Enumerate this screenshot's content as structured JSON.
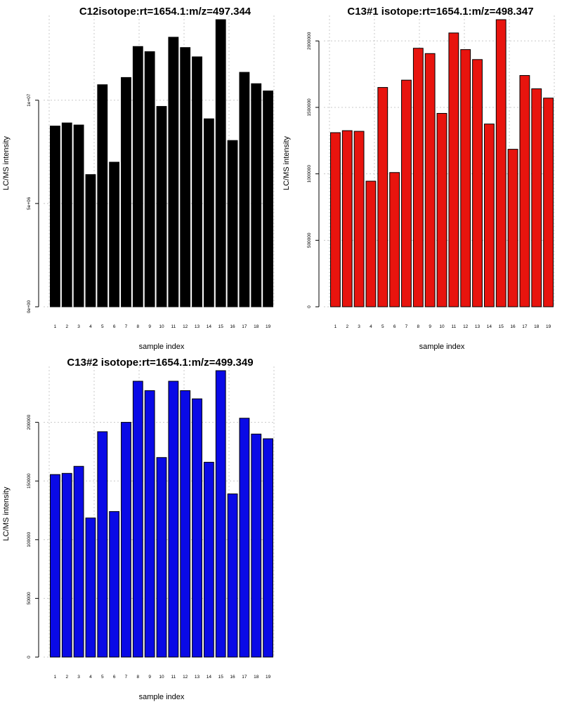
{
  "chart_data": [
    {
      "type": "bar",
      "title": "C12isotope:rt=1654.1:m/z=497.344",
      "xlabel": "sample index",
      "ylabel": "LC/MS intensity",
      "categories": [
        "1",
        "2",
        "3",
        "4",
        "5",
        "6",
        "7",
        "8",
        "9",
        "10",
        "11",
        "12",
        "13",
        "14",
        "15",
        "16",
        "17",
        "18",
        "19"
      ],
      "values": [
        8750000,
        8900000,
        8800000,
        6400000,
        10750000,
        7000000,
        11100000,
        12600000,
        12350000,
        9700000,
        13050000,
        12550000,
        12100000,
        9100000,
        13900000,
        8050000,
        11350000,
        10800000,
        10450000
      ],
      "ylim": [
        0,
        13900000
      ],
      "yticks": [
        0,
        5000000,
        10000000
      ],
      "ytick_labels": [
        "0e+00",
        "5e+06",
        "1e+07"
      ],
      "bar_color": "#000000",
      "grid": true
    },
    {
      "type": "bar",
      "title": "C13#1 isotope:rt=1654.1:m/z=498.347",
      "xlabel": "sample index",
      "ylabel": "LC/MS intensity",
      "categories": [
        "1",
        "2",
        "3",
        "4",
        "5",
        "6",
        "7",
        "8",
        "9",
        "10",
        "11",
        "12",
        "13",
        "14",
        "15",
        "16",
        "17",
        "18",
        "19"
      ],
      "values": [
        1310000,
        1325000,
        1320000,
        945000,
        1650000,
        1010000,
        1705000,
        1945000,
        1905000,
        1455000,
        2060000,
        1935000,
        1860000,
        1375000,
        2160000,
        1185000,
        1740000,
        1640000,
        1570000
      ],
      "ylim": [
        0,
        2160000
      ],
      "yticks": [
        0,
        500000,
        1000000,
        1500000,
        2000000
      ],
      "ytick_labels": [
        "0",
        "500000",
        "1000000",
        "1500000",
        "2000000"
      ],
      "bar_color": "#e8140e",
      "grid": true
    },
    {
      "type": "bar",
      "title": "C13#2 isotope:rt=1654.1:m/z=499.349",
      "xlabel": "sample index",
      "ylabel": "LC/MS intensity",
      "categories": [
        "1",
        "2",
        "3",
        "4",
        "5",
        "6",
        "7",
        "8",
        "9",
        "10",
        "11",
        "12",
        "13",
        "14",
        "15",
        "16",
        "17",
        "18",
        "19"
      ],
      "values": [
        155500,
        156500,
        162500,
        118500,
        192000,
        124000,
        200000,
        235000,
        227000,
        170000,
        235000,
        227000,
        220000,
        166000,
        244000,
        139000,
        203500,
        190000,
        186000
      ],
      "ylim": [
        0,
        244000
      ],
      "yticks": [
        0,
        50000,
        100000,
        150000,
        200000
      ],
      "ytick_labels": [
        "0",
        "50000",
        "100000",
        "150000",
        "200000"
      ],
      "bar_color": "#0a0ae6",
      "grid": true
    }
  ]
}
